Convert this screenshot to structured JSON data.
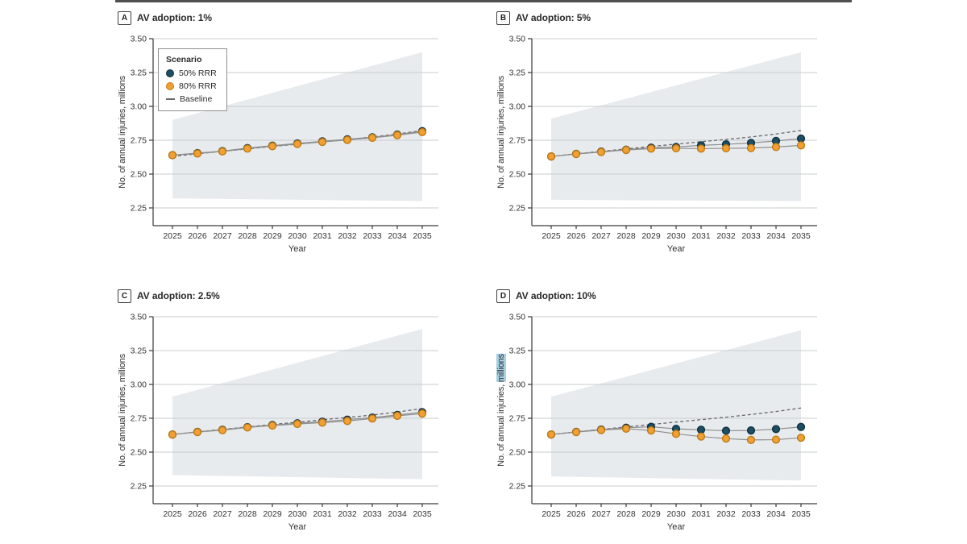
{
  "figure": {
    "description_labels": {
      "ylabel_prefix": "No. of annual injuries, ",
      "ylabel_word": "millions",
      "xlabel": "Year"
    }
  },
  "axes": {
    "ylabel_prefix": "No. of annual injuries, ",
    "ylabel_word": "millions",
    "xlabel": "Year"
  },
  "legend": {
    "title": "Scenario",
    "items": [
      {
        "label": "50% RRR",
        "marker": "circle",
        "fill": "#1d4e61",
        "stroke": "#0e3040"
      },
      {
        "label": "80% RRR",
        "marker": "circle",
        "fill": "#f0a035",
        "stroke": "#bf7a12"
      },
      {
        "label": "Baseline",
        "marker": "dash",
        "color": "#686868"
      }
    ]
  },
  "panels": [
    {
      "badge": "A",
      "title": "AV adoption: 1%",
      "highlight_millions": false
    },
    {
      "badge": "B",
      "title": "AV adoption: 5%",
      "highlight_millions": false
    },
    {
      "badge": "C",
      "title": "AV adoption: 2.5%",
      "highlight_millions": false
    },
    {
      "badge": "D",
      "title": "AV adoption: 10%",
      "highlight_millions": true
    }
  ],
  "chart_data": [
    {
      "type": "line",
      "panel": "A",
      "title": "AV adoption: 1%",
      "xlabel": "Year",
      "ylabel": "No. of annual injuries, millions",
      "x": [
        2025,
        2026,
        2027,
        2028,
        2029,
        2030,
        2031,
        2032,
        2033,
        2034,
        2035
      ],
      "yticks": [
        2.25,
        2.5,
        2.75,
        3.0,
        3.25,
        3.5
      ],
      "ylim": [
        2.25,
        3.5
      ],
      "grid": true,
      "legend_position": "upper-left-inside",
      "series": [
        {
          "name": "50% RRR",
          "style": "marker",
          "fill": "#1d4e61",
          "stroke": "#0e3040",
          "line_color": "#8f8f8f",
          "values": [
            2.64,
            2.655,
            2.67,
            2.692,
            2.71,
            2.726,
            2.742,
            2.757,
            2.772,
            2.792,
            2.817
          ]
        },
        {
          "name": "80% RRR",
          "style": "marker",
          "fill": "#f0a035",
          "stroke": "#bf7a12",
          "line_color": "#8f8f8f",
          "values": [
            2.64,
            2.652,
            2.667,
            2.688,
            2.706,
            2.722,
            2.737,
            2.752,
            2.768,
            2.787,
            2.81
          ]
        },
        {
          "name": "Baseline",
          "style": "dashed",
          "color": "#686868",
          "values": [
            2.63,
            2.65,
            2.668,
            2.686,
            2.704,
            2.721,
            2.739,
            2.756,
            2.774,
            2.796,
            2.822
          ]
        }
      ],
      "ci_band": {
        "x": [
          2025,
          2035
        ],
        "upper": [
          2.9,
          3.4
        ],
        "lower": [
          2.32,
          2.3
        ],
        "color": "#e8ebee"
      }
    },
    {
      "type": "line",
      "panel": "B",
      "title": "AV adoption: 5%",
      "xlabel": "Year",
      "ylabel": "No. of annual injuries, millions",
      "x": [
        2025,
        2026,
        2027,
        2028,
        2029,
        2030,
        2031,
        2032,
        2033,
        2034,
        2035
      ],
      "yticks": [
        2.25,
        2.5,
        2.75,
        3.0,
        3.25,
        3.5
      ],
      "ylim": [
        2.25,
        3.5
      ],
      "grid": true,
      "series": [
        {
          "name": "50% RRR",
          "style": "marker",
          "fill": "#1d4e61",
          "stroke": "#0e3040",
          "line_color": "#8f8f8f",
          "values": [
            2.63,
            2.65,
            2.666,
            2.68,
            2.695,
            2.7,
            2.712,
            2.72,
            2.73,
            2.745,
            2.762
          ]
        },
        {
          "name": "80% RRR",
          "style": "marker",
          "fill": "#f0a035",
          "stroke": "#bf7a12",
          "line_color": "#8f8f8f",
          "values": [
            2.63,
            2.648,
            2.663,
            2.678,
            2.688,
            2.69,
            2.688,
            2.69,
            2.692,
            2.7,
            2.712
          ]
        },
        {
          "name": "Baseline",
          "style": "dashed",
          "color": "#686868",
          "values": [
            2.63,
            2.65,
            2.668,
            2.686,
            2.704,
            2.721,
            2.739,
            2.756,
            2.774,
            2.796,
            2.822
          ]
        }
      ],
      "ci_band": {
        "x": [
          2025,
          2035
        ],
        "upper": [
          2.91,
          3.4
        ],
        "lower": [
          2.31,
          2.3
        ],
        "color": "#e8ebee"
      }
    },
    {
      "type": "line",
      "panel": "C",
      "title": "AV adoption: 2.5%",
      "xlabel": "Year",
      "ylabel": "No. of annual injuries, millions",
      "x": [
        2025,
        2026,
        2027,
        2028,
        2029,
        2030,
        2031,
        2032,
        2033,
        2034,
        2035
      ],
      "yticks": [
        2.25,
        2.5,
        2.75,
        3.0,
        3.25,
        3.5
      ],
      "ylim": [
        2.25,
        3.5
      ],
      "grid": true,
      "series": [
        {
          "name": "50% RRR",
          "style": "marker",
          "fill": "#1d4e61",
          "stroke": "#0e3040",
          "line_color": "#8f8f8f",
          "values": [
            2.63,
            2.65,
            2.665,
            2.685,
            2.7,
            2.713,
            2.725,
            2.74,
            2.755,
            2.775,
            2.795
          ]
        },
        {
          "name": "80% RRR",
          "style": "marker",
          "fill": "#f0a035",
          "stroke": "#bf7a12",
          "line_color": "#8f8f8f",
          "values": [
            2.63,
            2.648,
            2.662,
            2.682,
            2.696,
            2.708,
            2.718,
            2.73,
            2.748,
            2.768,
            2.785
          ]
        },
        {
          "name": "Baseline",
          "style": "dashed",
          "color": "#686868",
          "values": [
            2.63,
            2.65,
            2.668,
            2.686,
            2.704,
            2.721,
            2.739,
            2.756,
            2.774,
            2.796,
            2.822
          ]
        }
      ],
      "ci_band": {
        "x": [
          2025,
          2035
        ],
        "upper": [
          2.91,
          3.41
        ],
        "lower": [
          2.33,
          2.3
        ],
        "color": "#e8ebee"
      }
    },
    {
      "type": "line",
      "panel": "D",
      "title": "AV adoption: 10%",
      "xlabel": "Year",
      "ylabel": "No. of annual injuries, millions",
      "x": [
        2025,
        2026,
        2027,
        2028,
        2029,
        2030,
        2031,
        2032,
        2033,
        2034,
        2035
      ],
      "yticks": [
        2.25,
        2.5,
        2.75,
        3.0,
        3.25,
        3.5
      ],
      "ylim": [
        2.25,
        3.5
      ],
      "grid": true,
      "series": [
        {
          "name": "50% RRR",
          "style": "marker",
          "fill": "#1d4e61",
          "stroke": "#0e3040",
          "line_color": "#8f8f8f",
          "values": [
            2.63,
            2.65,
            2.667,
            2.68,
            2.687,
            2.672,
            2.665,
            2.658,
            2.66,
            2.67,
            2.686
          ]
        },
        {
          "name": "80% RRR",
          "style": "marker",
          "fill": "#f0a035",
          "stroke": "#bf7a12",
          "line_color": "#8f8f8f",
          "values": [
            2.63,
            2.648,
            2.663,
            2.673,
            2.66,
            2.635,
            2.615,
            2.6,
            2.59,
            2.592,
            2.606
          ]
        },
        {
          "name": "Baseline",
          "style": "dashed",
          "color": "#686868",
          "values": [
            2.63,
            2.65,
            2.668,
            2.686,
            2.704,
            2.722,
            2.74,
            2.758,
            2.778,
            2.8,
            2.826
          ]
        }
      ],
      "ci_band": {
        "x": [
          2025,
          2035
        ],
        "upper": [
          2.91,
          3.4
        ],
        "lower": [
          2.32,
          2.29
        ],
        "color": "#e8ebee"
      }
    }
  ]
}
